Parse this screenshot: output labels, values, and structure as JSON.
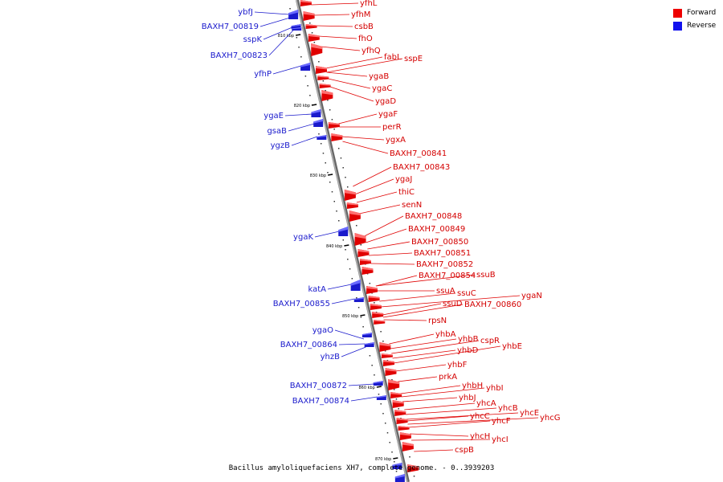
{
  "legend": [
    {
      "label": "Forward",
      "color": "#ee0000"
    },
    {
      "label": "Reverse",
      "color": "#1111ee"
    }
  ],
  "caption": "Bacillus amyloliquefaciens XH7, complete genome. - 0..3939203",
  "colors": {
    "forward": "#e00000",
    "reverse": "#1a1acc",
    "backbone": "#888888"
  },
  "ticks": [
    "810 kbp",
    "820 kbp",
    "830 kbp",
    "840 kbp",
    "850 kbp",
    "860 kbp",
    "870 kbp"
  ],
  "forward_genes": [
    "yfhL",
    "yfhM",
    "csbB",
    "fhO",
    "yfhQ",
    "fabL",
    "sspE",
    "ygaB",
    "ygaC",
    "ygaD",
    "ygaF",
    "perR",
    "ygxA",
    "BAXH7_00841",
    "BAXH7_00843",
    "ygaJ",
    "thiC",
    "senN",
    "BAXH7_00848",
    "BAXH7_00849",
    "BAXH7_00850",
    "BAXH7_00851",
    "BAXH7_00852",
    "BAXH7_00854",
    "ssuB",
    "ssuA",
    "ssuC",
    "ygaN",
    "ssuD",
    "BAXH7_00860",
    "rpsN",
    "yhbA",
    "yhbB",
    "cspR",
    "yhbD",
    "yhbE",
    "yhbF",
    "prkA",
    "yhbH",
    "yhbI",
    "yhbJ",
    "yhcA",
    "yhcB",
    "yhcE",
    "yhcG",
    "yhcC",
    "yhcF",
    "yhcH",
    "yhcI",
    "cspB"
  ],
  "reverse_genes": [
    "ybfJ",
    "BAXH7_00819",
    "sspK",
    "BAXH7_00823",
    "yfhP",
    "ygaE",
    "gsaB",
    "ygzB",
    "ygaK",
    "katA",
    "BAXH7_00855",
    "ygaO",
    "BAXH7_00864",
    "yhzB",
    "BAXH7_00872",
    "BAXH7_00874"
  ]
}
